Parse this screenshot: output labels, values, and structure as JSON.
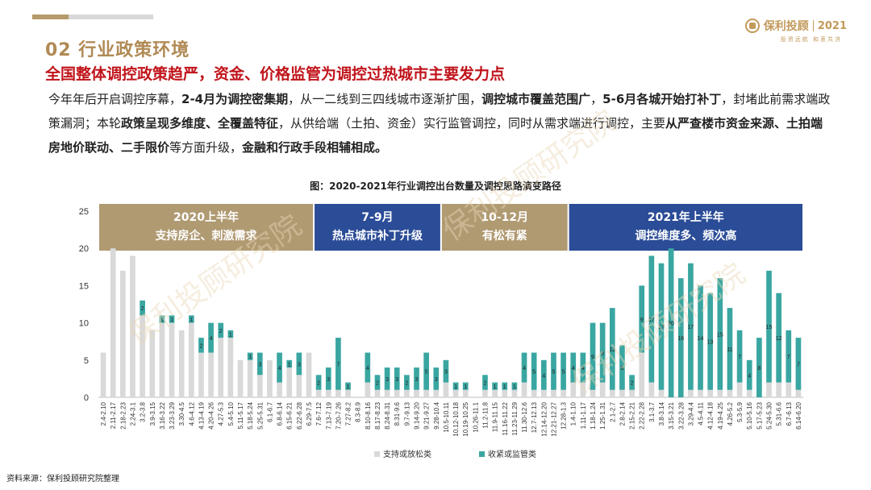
{
  "section_title": "02 行业政策环境",
  "headline": "全国整体调控政策趋严，资金、价格监管为调控过热城市主要发力点",
  "paragraph": [
    {
      "t": "今年年后开启调控序幕，",
      "b": false
    },
    {
      "t": "2-4月为调控密集期",
      "b": true
    },
    {
      "t": "，从一二线到三四线城市逐渐扩围，",
      "b": false
    },
    {
      "t": "调控城市覆盖范围广",
      "b": true
    },
    {
      "t": "，",
      "b": false
    },
    {
      "t": "5-6月各城开始打补丁",
      "b": true
    },
    {
      "t": "，封堵此前需求端政策漏洞；本轮",
      "b": false
    },
    {
      "t": "政策呈现多维度、全覆盖特征",
      "b": true
    },
    {
      "t": "，从供给端（土拍、资金）实行监管调控，同时从需求端进行调控，主要",
      "b": false
    },
    {
      "t": "从严查楼市资金来源、土拍端房地价联动、二手限价",
      "b": true
    },
    {
      "t": "等方面升级，",
      "b": false
    },
    {
      "t": "金融和行政手段相辅相成。",
      "b": true
    }
  ],
  "figure_title": "图：2020-2021年行业调控出台数量及调控思路演变路径",
  "source": "资料来源：保利投顾研究院整理",
  "logo": {
    "name": "保利投顾",
    "year": "2021",
    "sub": "投资远航  和衷共济"
  },
  "watermark": "保利投顾研究院",
  "colors": {
    "loose": "#d9d9d9",
    "tight": "#3aa6a1",
    "phase_gold": "#b09a72",
    "phase_blue": "#2b4c97",
    "accent": "#b08a55",
    "headline": "#c0141b"
  },
  "chart_data": {
    "type": "bar",
    "stacked": true,
    "ylim": [
      0,
      25
    ],
    "yticks": [
      0,
      5,
      10,
      15,
      20,
      25
    ],
    "legend_position": "bottom",
    "categories": [
      "2.4-2.10",
      "2.11-2.17",
      "2.18-2.23",
      "2.24-3.1",
      "3.2-3.8",
      "3.9-3.15",
      "3.16-3.22",
      "3.23-3.29",
      "3.30-4.5",
      "4.6-4.12",
      "4.13-4.19",
      "4.20-4.26",
      "4.27-5.3",
      "5.4-5.10",
      "5.11-5.17",
      "5.18-5.24",
      "5.25-5.31",
      "6.1-6.7",
      "6.8-6.14",
      "6.15-6.21",
      "6.22-6.28",
      "6.29-7.5",
      "7.6-7.12",
      "7.13-7.19",
      "7.20-7.26",
      "7.27-8.2",
      "8.3-8.9",
      "8.10-8.16",
      "8.17-8.23",
      "8.24-8.31",
      "8.31-9.6",
      "9.7-9.13",
      "9.14-9.20",
      "9.21-9.27",
      "9.28-10.4",
      "10.5-10.11",
      "10.12-10.18",
      "10.19-10.25",
      "10.26-11.1",
      "11.2-11.8",
      "11.9-11.15",
      "11.16-11.22",
      "11.23-11.29",
      "11.30-12.6",
      "12.7-12.13",
      "12.14-12.20",
      "12.21-12.27",
      "12.28-1.3",
      "1.4-1.10",
      "1.11-1.17",
      "1.18-1.24",
      "1.25-1.31",
      "2.1-2.7",
      "2.8-2.14",
      "2.15-2.21",
      "2.22-2.28",
      "3.1-3.7",
      "3.8-3.14",
      "3.15-3.21",
      "3.22-3.28",
      "3.29-4.4",
      "4.5-4.11",
      "4.12-4.18",
      "4.19-4.25",
      "4.26-5.2",
      "5.3-5.9",
      "5.10-5.16",
      "5.17-5.23",
      "5.24-5.30",
      "5.31-6.6",
      "6.7-6.13",
      "6.14-6.20"
    ],
    "xtick_labels": [
      "2.4-2.10",
      "2.11-2.17",
      "2.18-2.23",
      "2.24-3.1",
      "3.2-3.8",
      "3.9-3.15",
      "3.16-3.22",
      "3.23-3.29",
      "3.30-4.5",
      "4.6-4.12",
      "4.13-4.19",
      "4.20-4.26",
      "4.27-5.3",
      "5.4-5.10",
      "5.11-5.17",
      "5.18-5.24",
      "5.25-5.31",
      "6.1-6.7",
      "6.8-6.14",
      "6.15-6.21",
      "6.22-6.28",
      "6.29-7.5",
      "7.6-7.12",
      "7.13-7.19",
      "7.20-7.26",
      "7.27-8.2",
      "8.3-8.9",
      "8.10-8.16",
      "8.17-8.23",
      "8.24-8.31",
      "8.31-9.6",
      "9.7-9.13",
      "9.14-9.20",
      "9.21-9.27",
      "9.28-10.4",
      "10.5-10.11",
      "10.12-10.18",
      "10.19-10.25",
      "10.26-11.1",
      "11.2-11.8",
      "11.9-11.15",
      "11.16-11.22",
      "11.23-11.29",
      "11.30-12.6",
      "12.7-12.13",
      "12.14-12.20",
      "12.21-12.27",
      "12.28-1.3",
      "1.4-1.10",
      "1.11-1.17",
      "1.18-1.24",
      "1.25-1.31",
      "2.1-2.7",
      "2.8-2.14",
      "2.15-2.21",
      "2.22-2.28",
      "3.1-3.7",
      "3.8-3.14",
      "3.15-3.21",
      "3.22-3.28",
      "3.29-4.4",
      "4.5-4.11",
      "4.12-4.18",
      "4.19-4.25",
      "4.26-5.2",
      "5.3-5.9",
      "5.10-5.16",
      "5.17-5.23",
      "5.24-5.30",
      "5.31-6.6",
      "6.7-6.13",
      "6.14-6.20"
    ],
    "series": [
      {
        "name": "支持或放松类",
        "values": [
          6,
          20,
          17,
          19,
          11,
          9,
          10,
          10,
          9,
          10,
          6,
          6,
          8,
          8,
          5,
          5,
          3,
          5,
          2,
          4,
          3,
          6,
          1,
          1,
          1,
          1,
          0,
          2,
          1,
          1,
          1,
          1,
          1,
          1,
          1,
          2,
          1,
          1,
          0,
          1,
          1,
          1,
          1,
          2,
          1,
          1,
          1,
          1,
          2,
          2,
          1,
          2,
          1,
          1,
          1,
          6,
          2,
          1,
          0,
          0,
          1,
          1,
          1,
          1,
          1,
          2,
          1,
          0,
          2,
          2,
          2,
          1
        ]
      },
      {
        "name": "收紧或监管类",
        "values": [
          0,
          0,
          0,
          0,
          2,
          0,
          1,
          1,
          0,
          1,
          2,
          4,
          2,
          1,
          0,
          1,
          3,
          0,
          4,
          1,
          3,
          0,
          2,
          3,
          7,
          1,
          0,
          4,
          2,
          3,
          3,
          2,
          3,
          5,
          3,
          3,
          1,
          1,
          0,
          2,
          1,
          1,
          1,
          4,
          5,
          4,
          5,
          5,
          4,
          4,
          9,
          8,
          11,
          6,
          2,
          9,
          17,
          17,
          20,
          16,
          17,
          14,
          13,
          15,
          11,
          7,
          4,
          8,
          15,
          12,
          7,
          7
        ]
      }
    ],
    "data_labels": [
      [],
      [],
      [],
      [],
      [],
      [],
      [],
      [],
      [],
      [],
      [],
      [],
      [],
      [],
      [],
      [],
      [],
      [],
      [],
      [],
      [],
      [],
      [],
      [],
      [],
      [],
      [],
      [],
      [],
      [],
      [],
      [],
      [],
      [],
      [],
      [],
      [],
      [],
      [],
      [],
      [],
      [],
      [],
      [],
      [],
      [],
      [],
      [],
      [],
      [],
      [],
      [],
      [],
      [],
      [],
      [],
      [],
      [],
      [],
      [],
      [],
      [],
      [],
      [],
      [],
      [],
      [],
      [],
      [],
      [],
      [],
      []
    ],
    "phases": [
      {
        "label": "2020上半年",
        "sub": "支持房企、刺激需求",
        "from": 0,
        "to": 21,
        "color": "gold"
      },
      {
        "label": "7-9月",
        "sub": "热点城市补丁升级",
        "from": 22,
        "to": 34,
        "color": "blue"
      },
      {
        "label": "10-12月",
        "sub": "有松有紧",
        "from": 35,
        "to": 47,
        "color": "gold"
      },
      {
        "label": "2021年上半年",
        "sub": "调控维度多、频次高",
        "from": 48,
        "to": 71,
        "color": "blue"
      }
    ]
  }
}
